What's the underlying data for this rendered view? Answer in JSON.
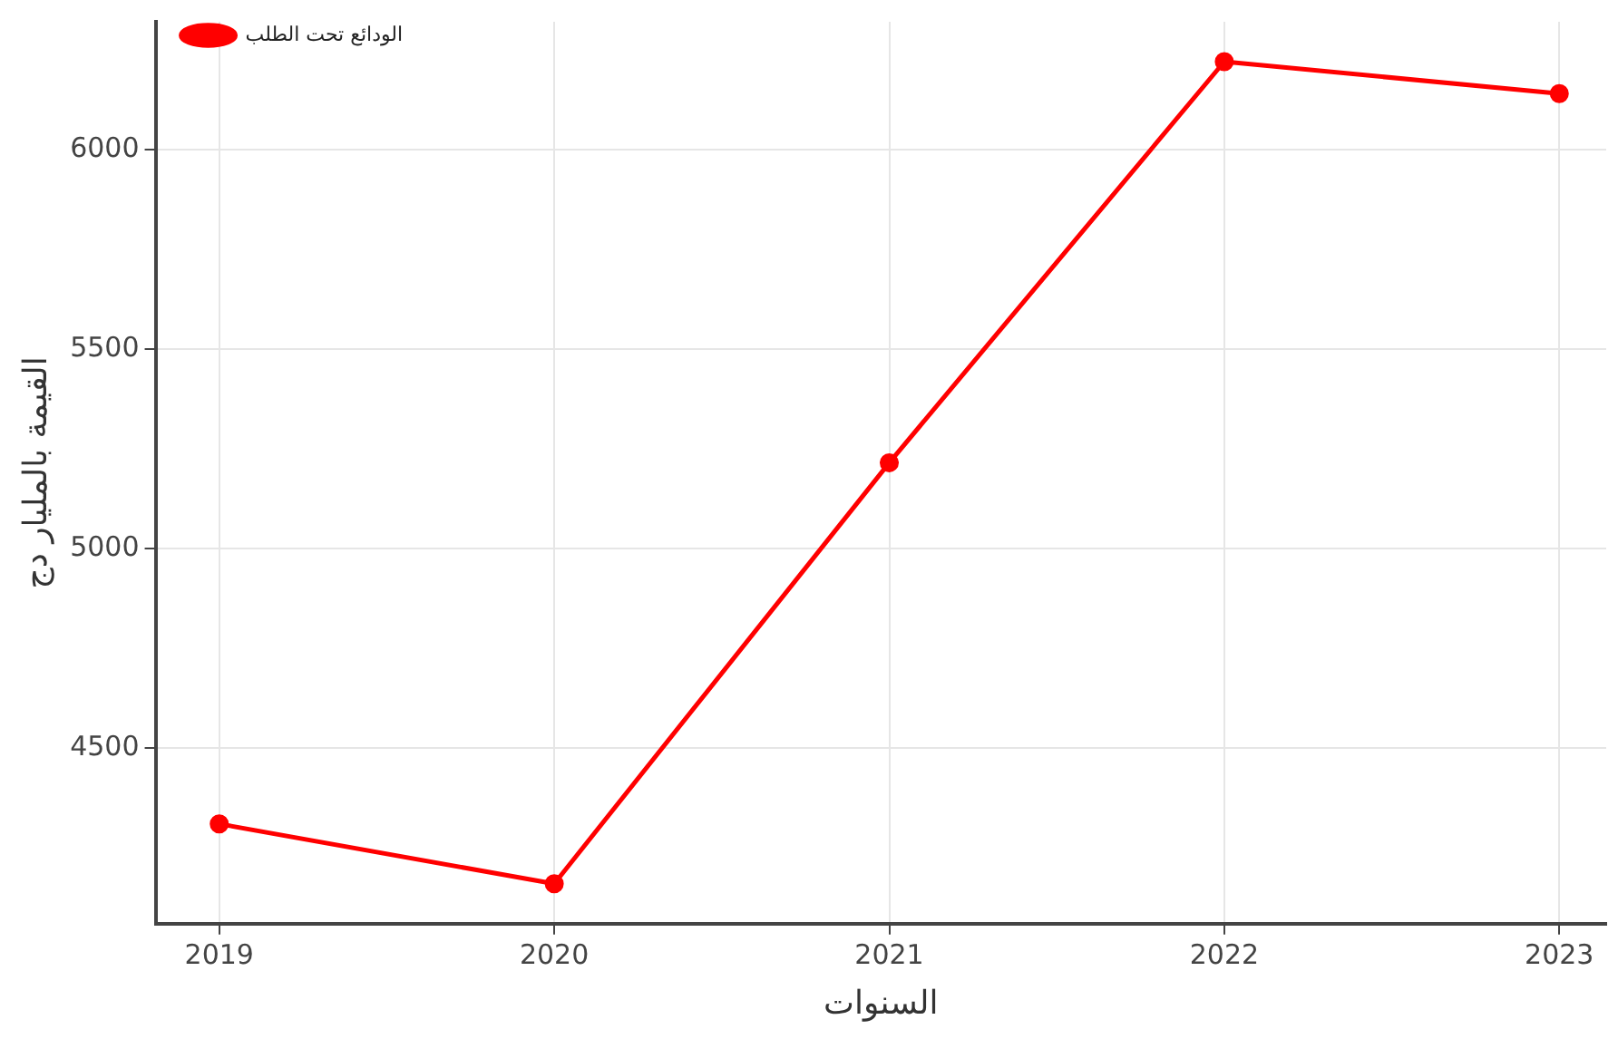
{
  "chart_data": {
    "type": "line",
    "xlabel": "السنوات",
    "ylabel": "القيمة بالمليار دج",
    "x": [
      2019,
      2020,
      2021,
      2022,
      2023
    ],
    "series": [
      {
        "name": "الودائع تحت الطلب",
        "color": "#ff0000",
        "values": [
          4310,
          4160,
          5215,
          6220,
          6140
        ]
      }
    ],
    "xlim": [
      2018.81,
      2023.14
    ],
    "xticks": [
      2019,
      2020,
      2021,
      2022,
      2023
    ],
    "ylim": [
      4060,
      6320
    ],
    "yticks": [
      4500,
      5000,
      5500,
      6000
    ],
    "grid": true,
    "legend": "top left",
    "marker": "circle",
    "line_style": "solid"
  }
}
